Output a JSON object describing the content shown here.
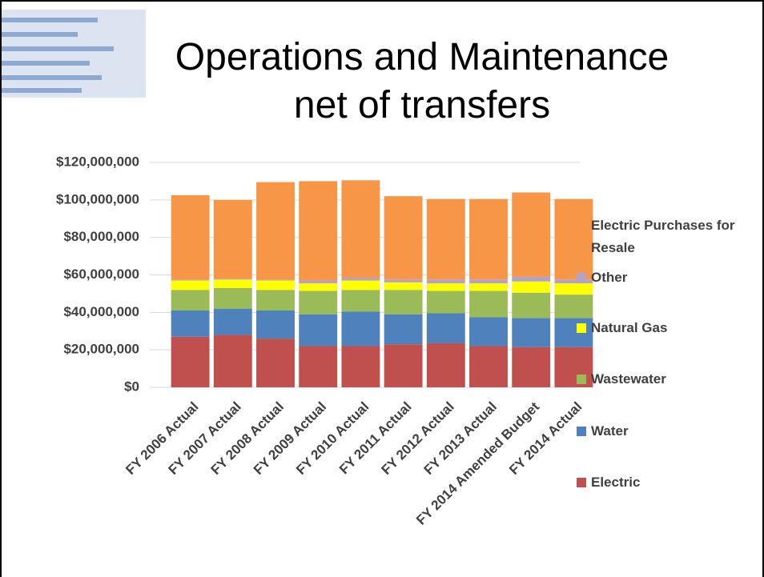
{
  "chart_data": {
    "type": "stacked_bar",
    "title": "Operations and Maintenance net of transfers",
    "categories": [
      "FY 2006 Actual",
      "FY 2007 Actual",
      "FY 2008 Actual",
      "FY 2009 Actual",
      "FY 2010 Actual",
      "FY 2011 Actual",
      "FY 2012 Actual",
      "FY 2013 Actual",
      "FY 2014 Amended Budget",
      "FY 2014 Actual"
    ],
    "series": [
      {
        "name": "Electric",
        "color": "#c0504d",
        "values": [
          27000000,
          28000000,
          26000000,
          22000000,
          22000000,
          23000000,
          23500000,
          22000000,
          21500000,
          21500000
        ]
      },
      {
        "name": "Water",
        "color": "#4f81bd",
        "values": [
          14000000,
          14000000,
          15000000,
          17000000,
          18500000,
          16000000,
          16000000,
          15500000,
          15500000,
          15500000
        ]
      },
      {
        "name": "Wastewater",
        "color": "#9bbb59",
        "values": [
          11000000,
          11000000,
          11000000,
          12500000,
          11500000,
          13000000,
          12000000,
          14000000,
          13500000,
          12500000
        ]
      },
      {
        "name": "Natural Gas",
        "color": "#ffff00",
        "values": [
          5000000,
          4500000,
          5000000,
          4000000,
          5000000,
          4000000,
          4000000,
          4000000,
          6000000,
          6000000
        ]
      },
      {
        "name": "Other",
        "color": "#b3a2c7",
        "values": [
          500000,
          500000,
          500000,
          1500000,
          1500000,
          1500000,
          2000000,
          2000000,
          2500000,
          2000000
        ]
      },
      {
        "name": "Electric Purchases for Resale",
        "color": "#f79646",
        "values": [
          45000000,
          42000000,
          52000000,
          53000000,
          52000000,
          44500000,
          43000000,
          43000000,
          45000000,
          43000000
        ]
      }
    ],
    "ylim": [
      0,
      120000000
    ],
    "yticks": [
      {
        "value": 0,
        "label": "$0"
      },
      {
        "value": 20000000,
        "label": "$20,000,000"
      },
      {
        "value": 40000000,
        "label": "$40,000,000"
      },
      {
        "value": 60000000,
        "label": "$60,000,000"
      },
      {
        "value": 80000000,
        "label": "$80,000,000"
      },
      {
        "value": 100000000,
        "label": "$100,000,000"
      },
      {
        "value": 120000000,
        "label": "$120,000,000"
      }
    ],
    "grid": true,
    "legend": "right"
  }
}
